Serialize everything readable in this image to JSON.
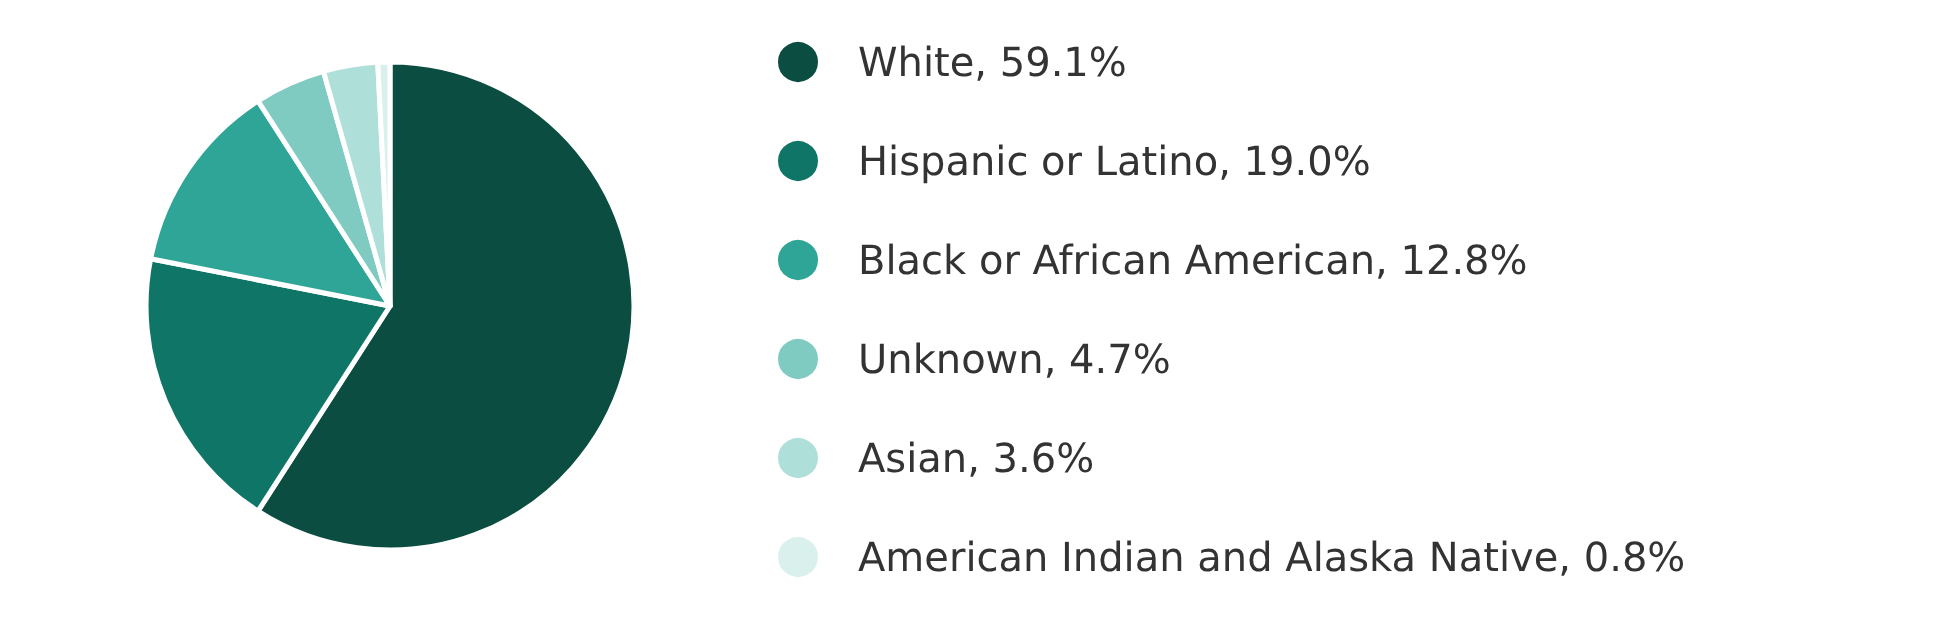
{
  "chart_data": {
    "type": "pie",
    "categories": [
      "White",
      "Hispanic or Latino",
      "Black or African American",
      "Unknown",
      "Asian",
      "American Indian and Alaska Native"
    ],
    "values": [
      59.1,
      19.0,
      12.8,
      4.7,
      3.6,
      0.8
    ],
    "value_labels": [
      "59.1%",
      "19.0%",
      "12.8%",
      "4.7%",
      "3.6%",
      "0.8%"
    ],
    "colors": [
      "#0b4d40",
      "#0f7566",
      "#2ea597",
      "#7fcbc1",
      "#afdfd9",
      "#daf0ed"
    ],
    "legend": "right"
  }
}
